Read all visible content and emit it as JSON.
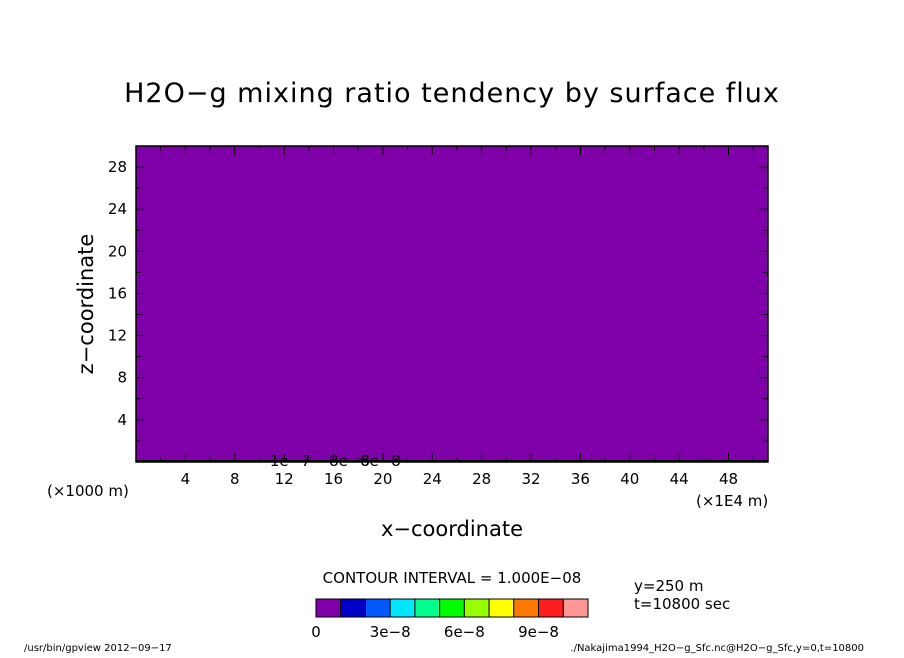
{
  "chart_data": {
    "type": "heatmap",
    "title": "H2O−g mixing ratio tendency by surface flux",
    "xlabel": "x−coordinate",
    "ylabel": "z−coordinate",
    "xunit_left": "(×1000 m)",
    "xunit_right": "(×1E4 m)",
    "xlim": [
      0,
      51.2
    ],
    "ylim": [
      0,
      30
    ],
    "xticks": [
      4,
      8,
      12,
      16,
      20,
      24,
      28,
      32,
      36,
      40,
      44,
      48
    ],
    "yticks": [
      4,
      8,
      12,
      16,
      20,
      24,
      28
    ],
    "fill_color": "#7f00a8",
    "contour_labels": [
      {
        "text": "1e−7",
        "x": 12.5
      },
      {
        "text": "8e−8",
        "x": 17.3
      },
      {
        "text": "6e−8",
        "x": 19.8
      }
    ],
    "contour_interval": "CONTOUR INTERVAL = 1.000E−08",
    "colorbar": {
      "colors": [
        "#7f00a8",
        "#0000c8",
        "#005aff",
        "#00e6ff",
        "#00ff8c",
        "#00ff00",
        "#96ff00",
        "#ffff00",
        "#ff7800",
        "#ff1e1e",
        "#ff9696"
      ],
      "labels": [
        "0",
        "3e−8",
        "6e−8",
        "9e−8"
      ]
    }
  },
  "info": {
    "y_value": "y=250 m",
    "t_value": "t=10800 sec"
  },
  "footer": {
    "left": "/usr/bin/gpview   2012−09−17",
    "right": "./Nakajima1994_H2O−g_Sfc.nc@H2O−g_Sfc,y=0,t=10800"
  }
}
